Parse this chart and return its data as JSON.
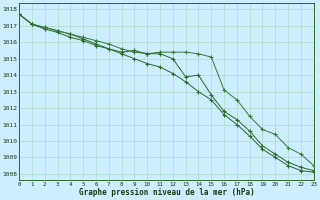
{
  "x": [
    0,
    1,
    2,
    3,
    4,
    5,
    6,
    7,
    8,
    9,
    10,
    11,
    12,
    13,
    14,
    15,
    16,
    17,
    18,
    19,
    20,
    21,
    22,
    23
  ],
  "line1": [
    1017.7,
    1017.1,
    1016.8,
    1016.6,
    1016.3,
    1016.1,
    1015.8,
    1015.6,
    1015.4,
    1015.5,
    1015.3,
    1015.3,
    1015.0,
    1013.9,
    1014.0,
    1012.8,
    1011.8,
    1011.3,
    1010.6,
    1009.7,
    1009.2,
    1008.7,
    1008.4,
    1008.2
  ],
  "line2": [
    1017.7,
    1017.1,
    1016.9,
    1016.7,
    1016.5,
    1016.3,
    1016.1,
    1015.9,
    1015.6,
    1015.4,
    1015.3,
    1015.4,
    1015.4,
    1015.4,
    1015.3,
    1015.1,
    1013.1,
    1012.5,
    1011.5,
    1010.7,
    1010.4,
    1009.6,
    1009.2,
    1008.5
  ],
  "line3": [
    1017.7,
    1017.1,
    1016.9,
    1016.7,
    1016.5,
    1016.2,
    1015.9,
    1015.6,
    1015.3,
    1015.0,
    1014.7,
    1014.5,
    1014.1,
    1013.6,
    1013.0,
    1012.5,
    1011.6,
    1011.0,
    1010.3,
    1009.5,
    1009.0,
    1008.5,
    1008.2,
    1008.1
  ],
  "line_color": "#2d6a2d",
  "line_color_mid": "#3a7a3a",
  "bg_color": "#cceeff",
  "grid_color_major": "#aaddcc",
  "grid_color_minor": "#bbddcc",
  "ylabel_ticks": [
    1008,
    1009,
    1010,
    1011,
    1012,
    1013,
    1014,
    1015,
    1016,
    1017,
    1018
  ],
  "xlabel": "Graphe pression niveau de la mer (hPa)",
  "ylim": [
    1007.6,
    1018.4
  ],
  "xlim": [
    0,
    23
  ]
}
